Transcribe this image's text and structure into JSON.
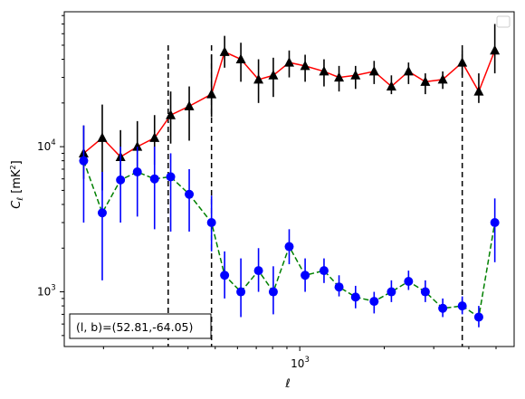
{
  "chart_data": {
    "type": "scatter",
    "x_scale": "log",
    "y_scale": "log",
    "xlabel": "ℓ",
    "ylabel_main": "C",
    "ylabel_sub": "ℓ",
    "ylabel_unit": "[mK",
    "ylabel_unit_sup": "2",
    "ylabel_unit_close": "]",
    "xlim": [
      145,
      5800
    ],
    "ylim": [
      420,
      85000
    ],
    "x_tick_labels": [
      {
        "value": 1000,
        "base": "10",
        "exp": "3"
      }
    ],
    "y_tick_labels": [
      {
        "value": 1000,
        "base": "10",
        "exp": "3"
      },
      {
        "value": 10000,
        "base": "10",
        "exp": "4"
      }
    ],
    "vlines": [
      340,
      485,
      3790
    ],
    "annotation": "(l, b)=(52.81,-64.05)",
    "annotation_parts": {
      "lhs": "(l, b)",
      "rhs": "=(52.81,-64.05)"
    },
    "legend": "top-right, empty",
    "grid": false,
    "series": [
      {
        "color": "#000000",
        "line_color": "#ff0000",
        "line_style": "solid",
        "marker": "triangle",
        "x": [
          170,
          198,
          230,
          264,
          304,
          347,
          404,
          485,
          540,
          617,
          713,
          805,
          917,
          1045,
          1220,
          1380,
          1580,
          1840,
          2120,
          2440,
          2800,
          3230,
          3790,
          4340,
          4950
        ],
        "y": [
          9000,
          11500,
          8500,
          10000,
          11500,
          16500,
          19000,
          23000,
          45000,
          40000,
          29000,
          31000,
          38000,
          36000,
          33000,
          30000,
          31000,
          33000,
          26000,
          33000,
          28000,
          29000,
          38000,
          24000,
          46000
        ],
        "err_low": [
          3000,
          6500,
          3000,
          3000,
          4000,
          6000,
          8000,
          7000,
          10000,
          12000,
          9000,
          9000,
          8000,
          8000,
          7000,
          6000,
          6000,
          6000,
          3000,
          6000,
          5000,
          4000,
          7000,
          4000,
          14000
        ],
        "err_high": [
          5000,
          8000,
          4500,
          5000,
          5000,
          7500,
          7000,
          20000,
          13000,
          12000,
          11000,
          10000,
          8000,
          7000,
          7000,
          6000,
          5000,
          6000,
          5000,
          5000,
          4000,
          4000,
          8000,
          8000,
          24000
        ]
      },
      {
        "color": "#0000ff",
        "line_color": "#008000",
        "line_style": "dashed",
        "marker": "circle",
        "x": [
          170,
          198,
          230,
          264,
          304,
          347,
          404,
          485,
          540,
          617,
          713,
          805,
          917,
          1045,
          1220,
          1380,
          1580,
          1840,
          2120,
          2440,
          2800,
          3230,
          3790,
          4340,
          4950
        ],
        "y": [
          8000,
          3500,
          5900,
          6700,
          6000,
          6200,
          4700,
          3000,
          1300,
          1000,
          1400,
          1000,
          2050,
          1300,
          1400,
          1080,
          920,
          860,
          1000,
          1180,
          1000,
          770,
          800,
          670,
          3000
        ],
        "err_low": [
          5000,
          2300,
          2900,
          3400,
          3300,
          3600,
          2100,
          1100,
          400,
          330,
          400,
          300,
          500,
          300,
          250,
          150,
          150,
          150,
          150,
          150,
          150,
          100,
          100,
          100,
          1400
        ],
        "err_high": [
          6000,
          3200,
          4100,
          3300,
          4000,
          2800,
          2300,
          1600,
          600,
          700,
          600,
          500,
          650,
          400,
          300,
          220,
          180,
          140,
          200,
          220,
          200,
          130,
          130,
          130,
          1400
        ]
      }
    ]
  }
}
